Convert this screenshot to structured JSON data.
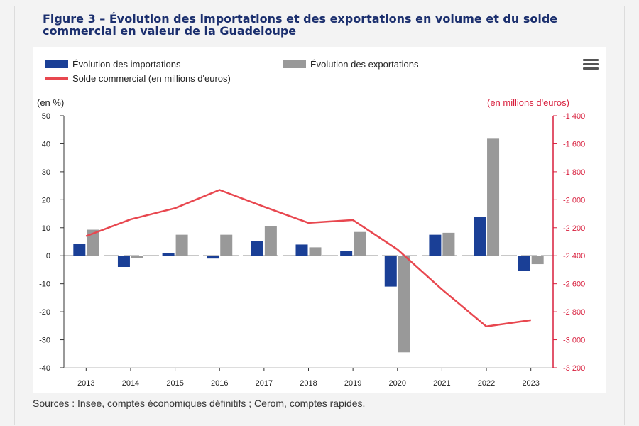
{
  "figure": {
    "title": "Figure 3 – Évolution des importations et des exportations en volume et du solde commercial en valeur de la Guadeloupe",
    "source": "Sources : Insee, comptes économiques définitifs ; Cerom, comptes rapides."
  },
  "legend": {
    "imports": "Évolution des importations",
    "exports": "Évolution des exportations",
    "balance": "Solde commercial (en millions d'euros)"
  },
  "axes": {
    "left_unit": "(en %)",
    "right_unit": "(en millions d'euros)"
  },
  "colors": {
    "imports": "#1a3f96",
    "exports": "#999999",
    "balance": "#e8474f",
    "right_axis": "#d81e3c"
  },
  "icons": {
    "menu": "hamburger-menu-icon"
  },
  "chart_data": {
    "type": "bar",
    "categories": [
      "2013",
      "2014",
      "2015",
      "2016",
      "2017",
      "2018",
      "2019",
      "2020",
      "2021",
      "2022",
      "2023"
    ],
    "series": [
      {
        "name": "Évolution des importations",
        "type": "bar",
        "axis": "left",
        "values": [
          4.2,
          -4.0,
          1.0,
          -1.0,
          5.2,
          4.0,
          1.8,
          -11.0,
          7.5,
          14.0,
          -5.5
        ]
      },
      {
        "name": "Évolution des exportations",
        "type": "bar",
        "axis": "left",
        "values": [
          9.3,
          -0.7,
          7.5,
          7.5,
          10.7,
          3.0,
          8.5,
          -34.5,
          8.2,
          41.8,
          -3.0
        ]
      },
      {
        "name": "Solde commercial (en millions d'euros)",
        "type": "line",
        "axis": "right",
        "values": [
          -2260,
          -2140,
          -2060,
          -1930,
          -2050,
          -2165,
          -2145,
          -2355,
          -2640,
          -2905,
          -2860
        ]
      }
    ],
    "left_axis": {
      "min": -40,
      "max": 50,
      "ticks": [
        50,
        40,
        30,
        20,
        10,
        0,
        -10,
        -20,
        -30,
        -40
      ]
    },
    "right_axis": {
      "min": -3200,
      "max": -1400,
      "ticks": [
        "-1 400",
        "-1 600",
        "-1 800",
        "-2 000",
        "-2 200",
        "-2 400",
        "-2 600",
        "-2 800",
        "-3 000",
        "-3 200"
      ]
    },
    "grid": false,
    "legend_position": "top-left"
  }
}
